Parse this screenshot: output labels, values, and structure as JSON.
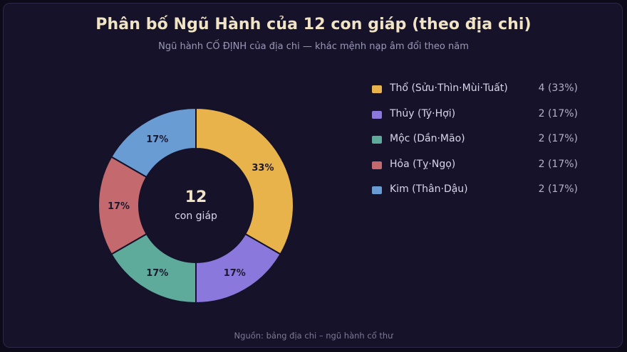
{
  "title": "Phân bố Ngũ Hành của 12 con giáp (theo địa chi)",
  "subtitle": "Ngũ hành CỐ ĐỊNH của địa chi — khác mệnh nạp âm đổi theo năm",
  "source": "Nguồn: bảng địa chi – ngũ hành cổ thư",
  "center": {
    "value": "12",
    "label": "con giáp"
  },
  "chart_data": {
    "type": "pie",
    "variant": "donut",
    "title": "Phân bố Ngũ Hành của 12 con giáp (theo địa chi)",
    "legend_placement": "right",
    "total": 12,
    "slices": [
      {
        "label": "Thổ (Sửu·Thìn·Mùi·Tuất)",
        "value": 4,
        "percent_label": "33%",
        "legend_value": "4 (33%)",
        "color": "#e8b34a"
      },
      {
        "label": "Thủy (Tý·Hợi)",
        "value": 2,
        "percent_label": "17%",
        "legend_value": "2 (17%)",
        "color": "#8b78dc"
      },
      {
        "label": "Mộc (Dần·Mão)",
        "value": 2,
        "percent_label": "17%",
        "legend_value": "2 (17%)",
        "color": "#5eab9c"
      },
      {
        "label": "Hỏa (Tỵ·Ngọ)",
        "value": 2,
        "percent_label": "17%",
        "legend_value": "2 (17%)",
        "color": "#c46a6e"
      },
      {
        "label": "Kim (Thân·Dậu)",
        "value": 2,
        "percent_label": "17%",
        "legend_value": "2 (17%)",
        "color": "#6a9cd4"
      }
    ]
  }
}
